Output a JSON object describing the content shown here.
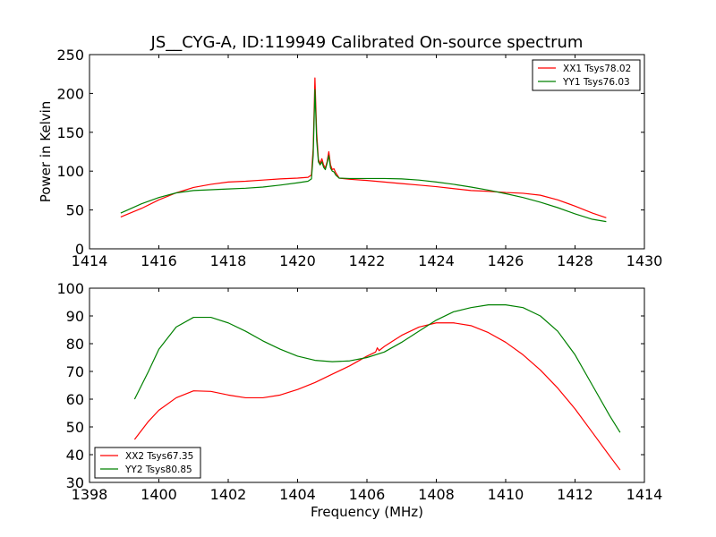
{
  "chart_data": [
    {
      "type": "line",
      "title": "JS__CYG-A, ID:119949 Calibrated On-source spectrum",
      "xlabel": "",
      "ylabel": "Power in Kelvin",
      "xlim": [
        1414,
        1430
      ],
      "ylim": [
        0,
        250
      ],
      "xticks": [
        1414,
        1416,
        1418,
        1420,
        1422,
        1424,
        1426,
        1428,
        1430
      ],
      "yticks": [
        0,
        50,
        100,
        150,
        200,
        250
      ],
      "legend_position": "top-right",
      "series": [
        {
          "name": "XX1 Tsys78.02",
          "color": "#ff0000",
          "x": [
            1414.9,
            1415.5,
            1416.0,
            1416.5,
            1417.0,
            1417.5,
            1418.0,
            1418.5,
            1419.0,
            1419.5,
            1420.0,
            1420.3,
            1420.4,
            1420.45,
            1420.5,
            1420.55,
            1420.6,
            1420.65,
            1420.7,
            1420.75,
            1420.8,
            1420.85,
            1420.9,
            1420.95,
            1421.0,
            1421.05,
            1421.1,
            1421.2,
            1421.5,
            1422.0,
            1422.5,
            1423.0,
            1423.5,
            1424.0,
            1424.5,
            1425.0,
            1425.5,
            1426.0,
            1426.5,
            1427.0,
            1427.5,
            1428.0,
            1428.5,
            1428.9
          ],
          "y": [
            41,
            52,
            63,
            72,
            79,
            83,
            86,
            87,
            88.5,
            90,
            91,
            92,
            95,
            130,
            220,
            150,
            115,
            110,
            116,
            108,
            104,
            112,
            125,
            108,
            102,
            103,
            98,
            91,
            89.5,
            88,
            86,
            84,
            82,
            80,
            77.5,
            75,
            74,
            72.5,
            71.5,
            69,
            63,
            55,
            46,
            40
          ]
        },
        {
          "name": "YY1 Tsys76.03",
          "color": "#008000",
          "x": [
            1414.9,
            1415.5,
            1416.0,
            1416.5,
            1417.0,
            1417.5,
            1418.0,
            1418.5,
            1419.0,
            1419.5,
            1420.0,
            1420.3,
            1420.4,
            1420.45,
            1420.5,
            1420.55,
            1420.6,
            1420.65,
            1420.7,
            1420.75,
            1420.8,
            1420.85,
            1420.9,
            1420.95,
            1421.0,
            1421.05,
            1421.1,
            1421.2,
            1421.5,
            1422.0,
            1422.5,
            1423.0,
            1423.5,
            1424.0,
            1424.5,
            1425.0,
            1425.5,
            1426.0,
            1426.5,
            1427.0,
            1427.5,
            1428.0,
            1428.5,
            1428.9
          ],
          "y": [
            46,
            58,
            66,
            72,
            75,
            76,
            77,
            78,
            79.5,
            82,
            85,
            87,
            90,
            120,
            205,
            140,
            112,
            108,
            112,
            105,
            102,
            110,
            120,
            104,
            100,
            99,
            95,
            91,
            90.5,
            90.5,
            90.5,
            90,
            88.5,
            86,
            83,
            79.5,
            75.5,
            71,
            66,
            60,
            53,
            45,
            38,
            35
          ]
        }
      ]
    },
    {
      "type": "line",
      "title": "",
      "xlabel": "Frequency (MHz)",
      "ylabel": "",
      "xlim": [
        1398,
        1414
      ],
      "ylim": [
        30,
        100
      ],
      "xticks": [
        1398,
        1400,
        1402,
        1404,
        1406,
        1408,
        1410,
        1412,
        1414
      ],
      "yticks": [
        30,
        40,
        50,
        60,
        70,
        80,
        90,
        100
      ],
      "legend_position": "bottom-left",
      "series": [
        {
          "name": "XX2 Tsys67.35",
          "color": "#ff0000",
          "x": [
            1399.3,
            1399.7,
            1400.0,
            1400.5,
            1401.0,
            1401.5,
            1402.0,
            1402.5,
            1403.0,
            1403.5,
            1404.0,
            1404.5,
            1405.0,
            1405.5,
            1406.0,
            1406.25,
            1406.3,
            1406.35,
            1406.5,
            1407.0,
            1407.5,
            1408.0,
            1408.5,
            1409.0,
            1409.5,
            1410.0,
            1410.5,
            1411.0,
            1411.5,
            1412.0,
            1412.5,
            1413.0,
            1413.3
          ],
          "y": [
            45.5,
            52,
            56,
            60.5,
            63,
            62.8,
            61.5,
            60.5,
            60.5,
            61.5,
            63.5,
            66,
            69,
            72,
            75.5,
            77,
            78.5,
            77.5,
            79,
            83,
            86,
            87.5,
            87.5,
            86.5,
            84,
            80.5,
            76,
            70.5,
            64,
            56.5,
            48,
            39.5,
            34.5
          ]
        },
        {
          "name": "YY2 Tsys80.85",
          "color": "#008000",
          "x": [
            1399.3,
            1399.7,
            1400.0,
            1400.5,
            1401.0,
            1401.5,
            1402.0,
            1402.5,
            1403.0,
            1403.5,
            1404.0,
            1404.5,
            1405.0,
            1405.5,
            1406.0,
            1406.5,
            1407.0,
            1407.5,
            1408.0,
            1408.5,
            1409.0,
            1409.5,
            1410.0,
            1410.5,
            1411.0,
            1411.5,
            1412.0,
            1412.5,
            1413.0,
            1413.3
          ],
          "y": [
            60,
            70,
            78,
            86,
            89.5,
            89.5,
            87.5,
            84.5,
            81,
            78,
            75.5,
            74,
            73.5,
            73.8,
            75,
            77,
            80.5,
            84.5,
            88.5,
            91.5,
            93,
            94,
            94,
            93,
            90,
            84.5,
            76,
            65,
            54,
            48
          ]
        }
      ]
    }
  ]
}
